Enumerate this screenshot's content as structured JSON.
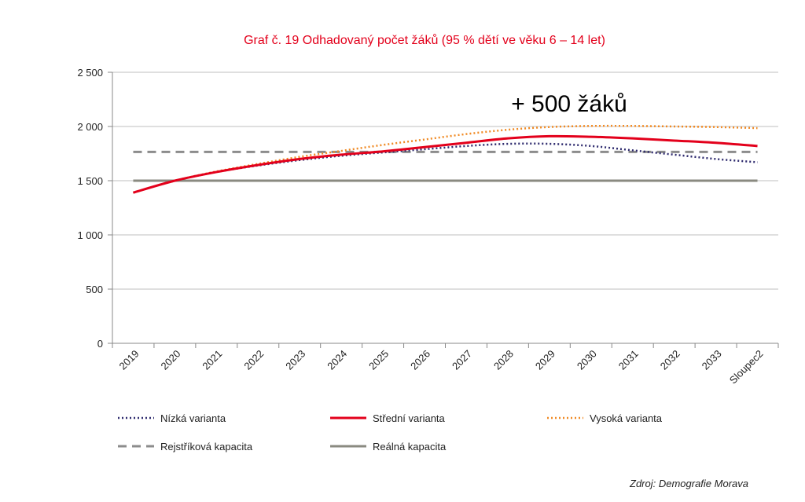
{
  "chart_data": {
    "type": "line",
    "title": "Graf č. 19 Odhadovaný počet žáků (95 % dětí ve věku 6 – 14 let)",
    "annotation": "+ 500 žáků",
    "source": "Zdroj: Demografie Morava",
    "categories": [
      "2019",
      "2020",
      "2021",
      "2022",
      "2023",
      "2024",
      "2025",
      "2026",
      "2027",
      "2028",
      "2029",
      "2030",
      "2031",
      "2032",
      "2033",
      "Sloupec2"
    ],
    "y_ticks": [
      "0",
      "500",
      "1 000",
      "1 500",
      "2 000",
      "2 500"
    ],
    "ylim": [
      0,
      2500
    ],
    "grid": true,
    "legend_position": "bottom",
    "series": [
      {
        "name": "Nízká varianta",
        "color": "#2e2a6e",
        "style": "dotted",
        "values": [
          1390,
          1500,
          1580,
          1640,
          1690,
          1730,
          1760,
          1790,
          1820,
          1840,
          1840,
          1820,
          1780,
          1740,
          1700,
          1670
        ]
      },
      {
        "name": "Střední varianta",
        "color": "#e3001b",
        "style": "solid",
        "values": [
          1390,
          1500,
          1580,
          1645,
          1700,
          1740,
          1770,
          1810,
          1850,
          1890,
          1910,
          1905,
          1890,
          1870,
          1850,
          1820
        ]
      },
      {
        "name": "Vysoká varianta",
        "color": "#f08a24",
        "style": "dotted",
        "values": [
          1390,
          1500,
          1585,
          1655,
          1720,
          1775,
          1830,
          1880,
          1930,
          1970,
          1995,
          2005,
          2005,
          2000,
          1995,
          1985
        ]
      },
      {
        "name": "Rejstříková kapacita",
        "color": "#8c8c8c",
        "style": "dashed",
        "values": [
          1765,
          1765,
          1765,
          1765,
          1765,
          1765,
          1765,
          1765,
          1765,
          1765,
          1765,
          1765,
          1765,
          1765,
          1765,
          1765
        ]
      },
      {
        "name": "Reálná kapacita",
        "color": "#8a8a80",
        "style": "solid",
        "values": [
          1500,
          1500,
          1500,
          1500,
          1500,
          1500,
          1500,
          1500,
          1500,
          1500,
          1500,
          1500,
          1500,
          1500,
          1500,
          1500
        ]
      }
    ]
  }
}
